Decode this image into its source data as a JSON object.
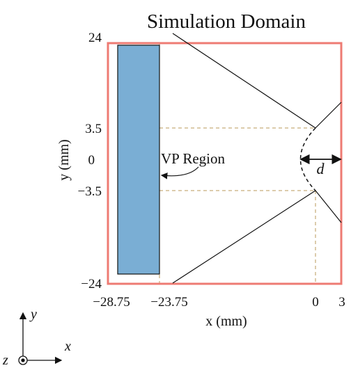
{
  "title": "Simulation Domain",
  "y_axis": {
    "label": "y (mm)",
    "ticks": [
      "24",
      "3.5",
      "0",
      "−3.5",
      "−24"
    ]
  },
  "x_axis": {
    "label": "x (mm)",
    "ticks": [
      "−28.75",
      "−23.75",
      "0",
      "3"
    ]
  },
  "region_label": "VP Region",
  "gap_label": "d",
  "frame": {
    "x": "x",
    "y": "y",
    "z": "z"
  }
}
